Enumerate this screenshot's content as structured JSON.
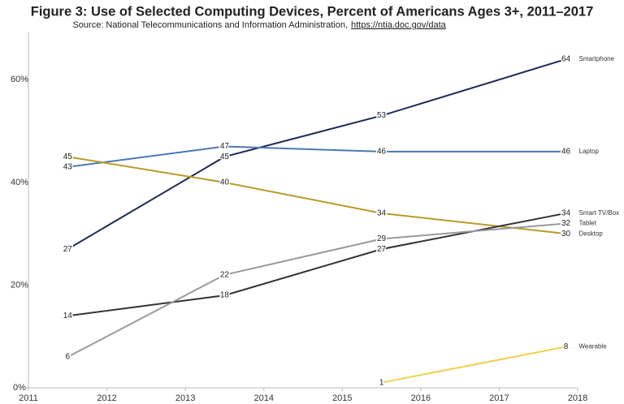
{
  "chart_data": {
    "type": "line",
    "title": "Figure 3: Use of Selected Computing Devices, Percent of Americans Ages 3+, 2011–2017",
    "source": "Source: National Telecommunications and Information Administration,",
    "source_url": "https://ntia.doc.gov/data",
    "x": [
      2011.5,
      2013.5,
      2015.5,
      2017.85
    ],
    "xlim": [
      2011,
      2018
    ],
    "xticks": [
      2011,
      2012,
      2013,
      2014,
      2015,
      2016,
      2017,
      2018
    ],
    "ylim": [
      0,
      70
    ],
    "yticks": [
      {
        "value": 0,
        "label": "0%"
      },
      {
        "value": 20,
        "label": "20%"
      },
      {
        "value": 40,
        "label": "40%"
      },
      {
        "value": 60,
        "label": "60%"
      }
    ],
    "grid": false,
    "series": [
      {
        "name": "Smartphone",
        "color": "#1f2a56",
        "values": [
          27,
          45,
          53,
          64
        ]
      },
      {
        "name": "Laptop",
        "color": "#4a78b0",
        "values": [
          43,
          47,
          46,
          46
        ]
      },
      {
        "name": "Desktop",
        "color": "#b99b25",
        "values": [
          45,
          40,
          34,
          30
        ]
      },
      {
        "name": "Smart TV/Box",
        "color": "#333333",
        "values": [
          14,
          18,
          27,
          34
        ]
      },
      {
        "name": "Tablet",
        "color": "#9a9a9a",
        "values": [
          6,
          22,
          29,
          32
        ]
      },
      {
        "name": "Wearable",
        "color": "#f0d050",
        "values": [
          null,
          null,
          1,
          8
        ]
      }
    ]
  }
}
